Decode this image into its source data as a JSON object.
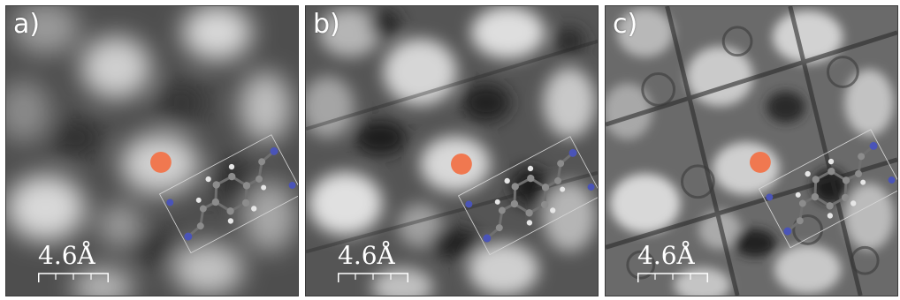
{
  "figure": {
    "panels": [
      {
        "label": "a)",
        "scale_text": "4.6Å",
        "tone": "smooth",
        "marker_color": "#f07850"
      },
      {
        "label": "b)",
        "scale_text": "4.6Å",
        "tone": "medium",
        "marker_color": "#f07850"
      },
      {
        "label": "c)",
        "scale_text": "4.6Å",
        "tone": "sharp",
        "marker_color": "#f07850"
      }
    ],
    "colors": {
      "marker": "#f07850",
      "carbon_atom": "#8c8c8c",
      "hydrogen_atom": "#e6e6e6",
      "nitrogen_atom": "#4a54b8",
      "scale_bar": "#ffffff"
    }
  }
}
